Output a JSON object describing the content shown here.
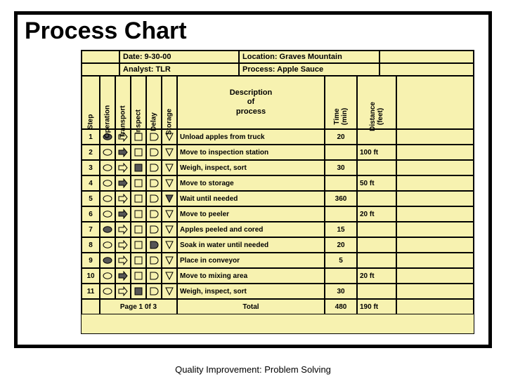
{
  "title": "Process Chart",
  "footer": "Quality Improvement: Problem Solving",
  "header": {
    "date_label": "Date: 9-30-00",
    "location_label": "Location: Graves Mountain",
    "analyst_label": "Analyst: TLR",
    "process_label": "Process:  Apple Sauce"
  },
  "cols": {
    "step": "Step",
    "operation": "Operation",
    "transport": "Transport",
    "inspect": "Inspect",
    "delay": "Delay",
    "storage": "Storage",
    "description": "Description\nof\nprocess",
    "time": "Time\n(min)",
    "distance": "Distance\n(feet)"
  },
  "widths": {
    "step": 26,
    "sym": 22,
    "desc": 210,
    "time": 46,
    "dist": 56,
    "tail": 108
  },
  "symbols": {
    "operation": "ellipse",
    "transport": "arrow",
    "inspect": "square",
    "delay": "Dshape",
    "storage": "triangle"
  },
  "sel_fill": "#555555",
  "steps": [
    {
      "n": "1",
      "desc": "Unload apples from truck",
      "time": "20",
      "dist": "",
      "sel": 0
    },
    {
      "n": "2",
      "desc": "Move to inspection station",
      "time": "",
      "dist": "100 ft",
      "sel": 1
    },
    {
      "n": "3",
      "desc": "Weigh, inspect, sort",
      "time": "30",
      "dist": "",
      "sel": 2
    },
    {
      "n": "4",
      "desc": "Move to storage",
      "time": "",
      "dist": "50 ft",
      "sel": 1
    },
    {
      "n": "5",
      "desc": "Wait until needed",
      "time": "360",
      "dist": "",
      "sel": 4
    },
    {
      "n": "6",
      "desc": "Move to peeler",
      "time": "",
      "dist": "20 ft",
      "sel": 1
    },
    {
      "n": "7",
      "desc": "Apples peeled and cored",
      "time": "15",
      "dist": "",
      "sel": 0
    },
    {
      "n": "8",
      "desc": "Soak in water until needed",
      "time": "20",
      "dist": "",
      "sel": 3
    },
    {
      "n": "9",
      "desc": "Place in conveyor",
      "time": "5",
      "dist": "",
      "sel": 0
    },
    {
      "n": "10",
      "desc": "Move to mixing area",
      "time": "",
      "dist": "20 ft",
      "sel": 1
    },
    {
      "n": "11",
      "desc": "Weigh, inspect, sort",
      "time": "30",
      "dist": "",
      "sel": 2
    }
  ],
  "totals": {
    "page": "Page 1 0f 3",
    "label": "Total",
    "time": "480",
    "dist": "190 ft"
  }
}
